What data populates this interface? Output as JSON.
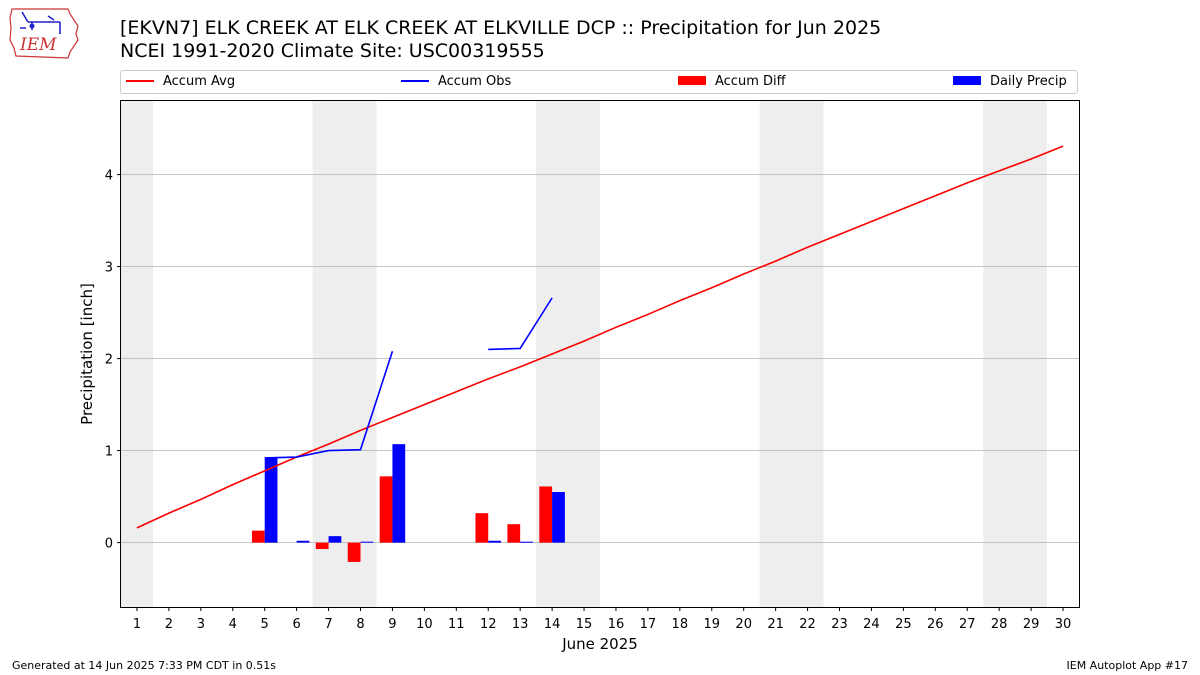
{
  "header": {
    "title_line1": "[EKVN7] ELK CREEK  AT ELK CREEK AT ELKVILLE DCP :: Precipitation for Jun 2025",
    "title_line2": "NCEI 1991-2020 Climate Site: USC00319555"
  },
  "logo": {
    "text": "IEM"
  },
  "footer": {
    "left": "Generated at 14 Jun 2025 7:33 PM CDT in 0.51s",
    "right": "IEM Autoplot App #17"
  },
  "legend": {
    "accum_avg": "Accum Avg",
    "accum_obs": "Accum Obs",
    "accum_diff": "Accum Diff",
    "daily_precip": "Daily Precip"
  },
  "colors": {
    "avg": "#ff0000",
    "obs": "#0000ff",
    "diff": "#ff0000",
    "daily": "#0000ff",
    "weekend_shade": "#eeeeee",
    "grid": "#b0b0b0"
  },
  "chart_data": {
    "type": "bar+line",
    "xlabel": "June 2025",
    "ylabel": "Precipitation [inch]",
    "xlim": [
      0.5,
      30.5
    ],
    "ylim": [
      -0.7,
      4.8
    ],
    "yticks": [
      0,
      1,
      2,
      3,
      4
    ],
    "xticks": [
      1,
      2,
      3,
      4,
      5,
      6,
      7,
      8,
      9,
      10,
      11,
      12,
      13,
      14,
      15,
      16,
      17,
      18,
      19,
      20,
      21,
      22,
      23,
      24,
      25,
      26,
      27,
      28,
      29,
      30
    ],
    "grid": "horizontal",
    "weekend_spans": [
      [
        0.5,
        1.5
      ],
      [
        6.5,
        8.5
      ],
      [
        13.5,
        15.5
      ],
      [
        20.5,
        22.5
      ],
      [
        27.5,
        29.5
      ]
    ],
    "series": [
      {
        "name": "Accum Avg",
        "kind": "line",
        "x": [
          1,
          2,
          3,
          4,
          5,
          6,
          7,
          8,
          9,
          10,
          11,
          12,
          13,
          14,
          15,
          16,
          17,
          18,
          19,
          20,
          21,
          22,
          23,
          24,
          25,
          26,
          27,
          28,
          29,
          30
        ],
        "values": [
          0.16,
          0.32,
          0.47,
          0.63,
          0.78,
          0.93,
          1.07,
          1.22,
          1.36,
          1.5,
          1.64,
          1.78,
          1.91,
          2.05,
          2.19,
          2.34,
          2.48,
          2.63,
          2.77,
          2.92,
          3.06,
          3.21,
          3.35,
          3.49,
          3.63,
          3.77,
          3.91,
          4.04,
          4.17,
          4.31
        ]
      },
      {
        "name": "Accum Obs",
        "kind": "line",
        "segments": [
          {
            "x": [
              5,
              6,
              7,
              8,
              9
            ],
            "values": [
              0.92,
              0.93,
              1.0,
              1.01,
              2.08
            ]
          },
          {
            "x": [
              12,
              13,
              14
            ],
            "values": [
              2.1,
              2.11,
              2.66
            ]
          }
        ]
      },
      {
        "name": "Accum Diff",
        "kind": "bar",
        "x": [
          5,
          6,
          7,
          8,
          9,
          12,
          13,
          14
        ],
        "values": [
          0.13,
          0.0,
          -0.07,
          -0.21,
          0.72,
          0.32,
          0.2,
          0.61
        ]
      },
      {
        "name": "Daily Precip",
        "kind": "bar",
        "x": [
          5,
          6,
          7,
          8,
          9,
          12,
          13,
          14
        ],
        "values": [
          0.92,
          0.02,
          0.07,
          0.01,
          1.07,
          0.02,
          0.01,
          0.55
        ]
      }
    ]
  }
}
